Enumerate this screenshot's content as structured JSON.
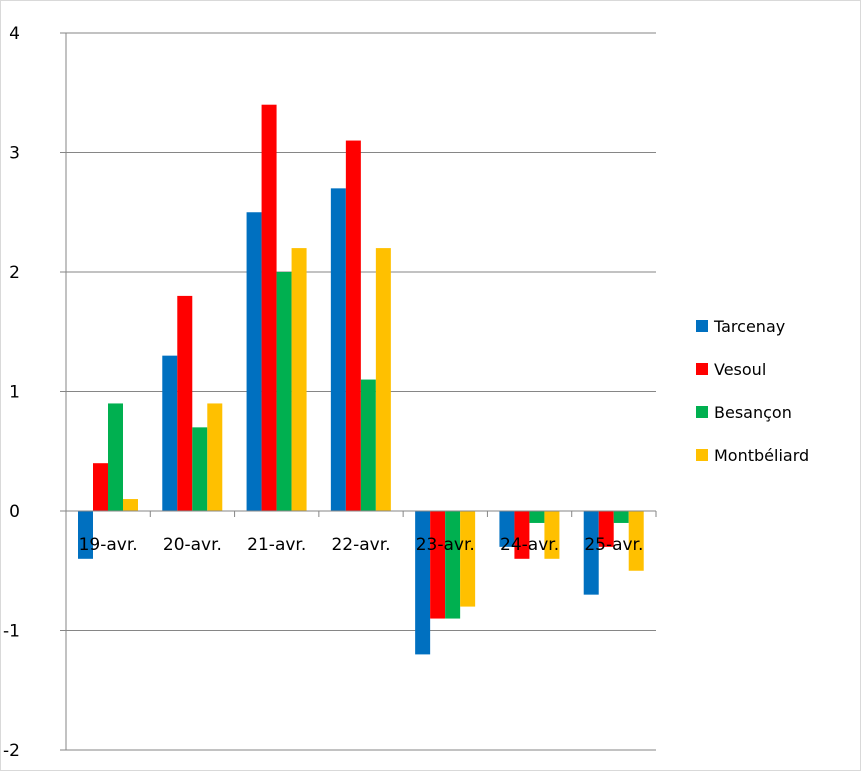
{
  "chart_data": {
    "type": "bar",
    "title": "",
    "xlabel": "",
    "ylabel": "",
    "categories": [
      "19-avr.",
      "20-avr.",
      "21-avr.",
      "22-avr.",
      "23-avr.",
      "24-avr.",
      "25-avr."
    ],
    "series": [
      {
        "name": "Tarcenay",
        "color": "#0070C0",
        "values": [
          -0.4,
          1.3,
          2.5,
          2.7,
          -1.2,
          -0.3,
          -0.7
        ]
      },
      {
        "name": "Vesoul",
        "color": "#FF0000",
        "values": [
          0.4,
          1.8,
          3.4,
          3.1,
          -0.9,
          -0.4,
          -0.3
        ]
      },
      {
        "name": "Besançon",
        "color": "#00B050",
        "values": [
          0.9,
          0.7,
          2.0,
          1.1,
          -0.9,
          -0.1,
          -0.1
        ]
      },
      {
        "name": "Montbéliard",
        "color": "#FFC000",
        "values": [
          0.1,
          0.9,
          2.2,
          2.2,
          -0.8,
          -0.4,
          -0.5
        ]
      }
    ],
    "ylim": [
      -2,
      4
    ],
    "yticks": [
      "-2",
      "-1",
      "0",
      "1",
      "2",
      "3",
      "4"
    ],
    "grid": true,
    "legend_position": "right"
  }
}
